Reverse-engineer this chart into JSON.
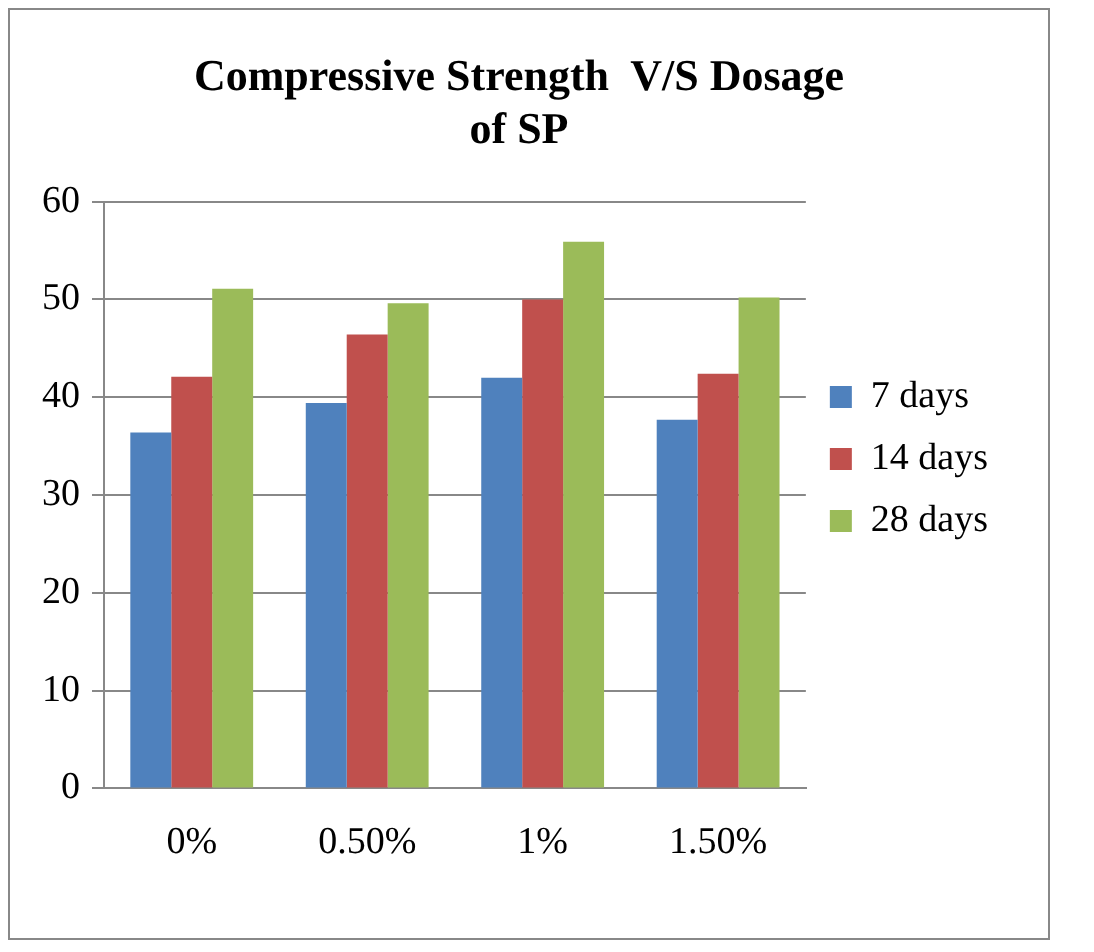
{
  "chart_data": {
    "type": "bar",
    "title": "Compressive Strength  V/S Dosage of SP",
    "categories": [
      "0%",
      "0.50%",
      "1%",
      "1.50%"
    ],
    "series": [
      {
        "name": "7 days",
        "color": "#4f81bd",
        "values": [
          36.4,
          39.4,
          42.0,
          37.7
        ]
      },
      {
        "name": "14 days",
        "color": "#c0504d",
        "values": [
          42.1,
          46.4,
          50.0,
          42.4
        ]
      },
      {
        "name": "28 days",
        "color": "#9bbb59",
        "values": [
          51.1,
          49.6,
          55.9,
          50.2
        ]
      }
    ],
    "ylim": [
      0,
      60
    ],
    "yticks": [
      0,
      10,
      20,
      30,
      40,
      50,
      60
    ],
    "grid": "y",
    "legend": "right"
  }
}
